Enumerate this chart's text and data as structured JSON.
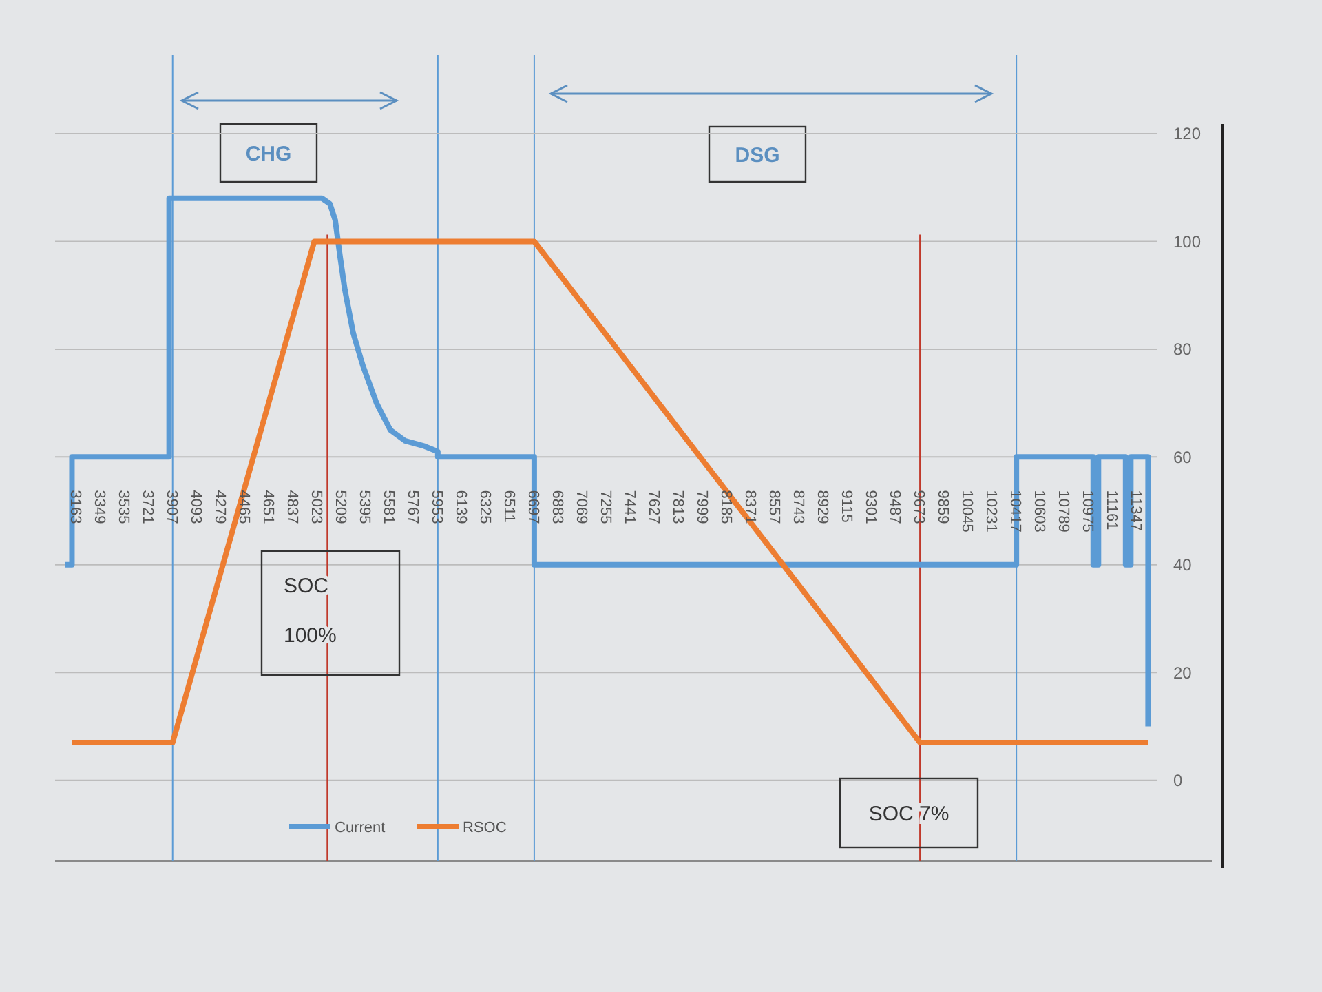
{
  "chart_data": {
    "type": "line",
    "xlim": [
      3000,
      11500
    ],
    "xticks": [
      3163,
      3349,
      3535,
      3721,
      3907,
      4093,
      4279,
      4465,
      4651,
      4837,
      5023,
      5209,
      5395,
      5581,
      5767,
      5953,
      6139,
      6325,
      6511,
      6697,
      6883,
      7069,
      7255,
      7441,
      7627,
      7813,
      7999,
      8185,
      8371,
      8557,
      8743,
      8929,
      9115,
      9301,
      9487,
      9673,
      9859,
      10045,
      10231,
      10417,
      10603,
      10789,
      10975,
      11161,
      11347
    ],
    "ylim": [
      -15,
      120
    ],
    "yticks": [
      0,
      20,
      40,
      60,
      80,
      100,
      120
    ],
    "grid": "y",
    "legend": "bottom left",
    "series": [
      {
        "name": "Current",
        "color": "#5b9bd5",
        "x": [
          3078,
          3130,
          3130,
          3880,
          3880,
          5060,
          5120,
          5161,
          5200,
          5236,
          5300,
          5374,
          5480,
          5587,
          5700,
          5850,
          5953,
          5953,
          6697,
          6697,
          10417,
          10417,
          11010,
          11010,
          11050,
          11050,
          11260,
          11260,
          11300,
          11300,
          11433,
          11433
        ],
        "values": [
          40,
          40,
          60,
          60,
          108,
          108,
          107,
          104,
          97,
          91,
          83,
          77,
          70,
          65,
          63,
          62,
          61,
          60,
          60,
          40,
          40,
          60,
          60,
          40,
          40,
          60,
          60,
          40,
          40,
          60,
          60,
          10
        ]
      },
      {
        "name": "RSOC",
        "color": "#ed7d31",
        "x": [
          3130,
          3907,
          5000,
          6697,
          9673,
          11433
        ],
        "values": [
          7,
          7,
          100,
          100,
          7,
          7
        ]
      }
    ],
    "ref_lines": [
      {
        "axis": "x",
        "value": 3907,
        "color": "#5b9bd5"
      },
      {
        "axis": "x",
        "value": 5953,
        "color": "#5b9bd5"
      },
      {
        "axis": "x",
        "value": 6697,
        "color": "#5b9bd5"
      },
      {
        "axis": "x",
        "value": 10417,
        "color": "#5b9bd5"
      },
      {
        "axis": "x",
        "value": 5100,
        "color": "#c0392b"
      },
      {
        "axis": "x",
        "value": 9673,
        "color": "#c0392b"
      }
    ],
    "annotations": [
      "CHG",
      "DSG",
      "SOC 100%",
      "SOC 7%"
    ]
  }
}
